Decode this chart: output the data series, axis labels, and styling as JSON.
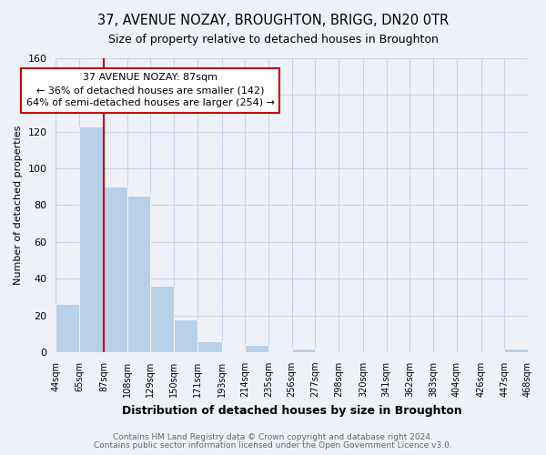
{
  "title": "37, AVENUE NOZAY, BROUGHTON, BRIGG, DN20 0TR",
  "subtitle": "Size of property relative to detached houses in Broughton",
  "xlabel": "Distribution of detached houses by size in Broughton",
  "ylabel": "Number of detached properties",
  "bar_edges": [
    44,
    65,
    87,
    108,
    129,
    150,
    171,
    193,
    214,
    235,
    256,
    277,
    298,
    320,
    341,
    362,
    383,
    404,
    426,
    447,
    468
  ],
  "bar_heights": [
    26,
    123,
    90,
    85,
    36,
    18,
    6,
    0,
    4,
    0,
    2,
    0,
    0,
    0,
    0,
    0,
    0,
    0,
    0,
    2
  ],
  "tick_labels": [
    "44sqm",
    "65sqm",
    "87sqm",
    "108sqm",
    "129sqm",
    "150sqm",
    "171sqm",
    "193sqm",
    "214sqm",
    "235sqm",
    "256sqm",
    "277sqm",
    "298sqm",
    "320sqm",
    "341sqm",
    "362sqm",
    "383sqm",
    "404sqm",
    "426sqm",
    "447sqm",
    "468sqm"
  ],
  "bar_color": "#b8d0e8",
  "vline_x": 87,
  "vline_color": "#cc0000",
  "ylim": [
    0,
    160
  ],
  "yticks": [
    0,
    20,
    40,
    60,
    80,
    100,
    120,
    140,
    160
  ],
  "annotation_line1": "37 AVENUE NOZAY: 87sqm",
  "annotation_line2": "← 36% of detached houses are smaller (142)",
  "annotation_line3": "64% of semi-detached houses are larger (254) →",
  "footer1": "Contains HM Land Registry data © Crown copyright and database right 2024.",
  "footer2": "Contains public sector information licensed under the Open Government Licence v3.0.",
  "bg_color": "#eef2f8",
  "plot_bg_color": "#eef2f8",
  "grid_color": "#c8d4e8",
  "title_fontsize": 10.5,
  "subtitle_fontsize": 9
}
